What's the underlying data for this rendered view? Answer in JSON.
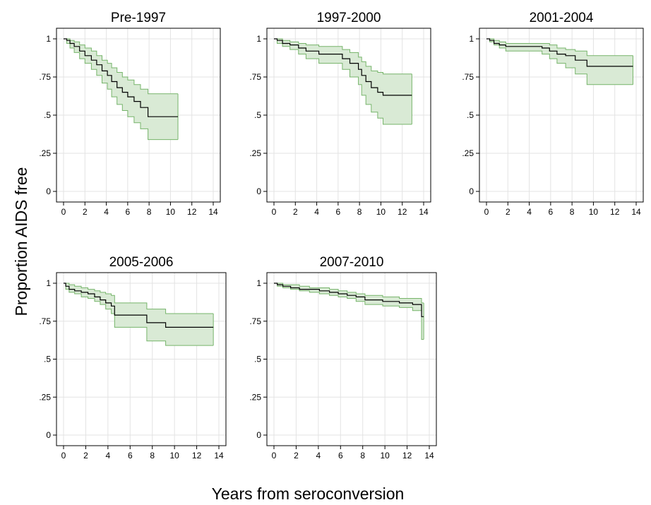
{
  "figure": {
    "ylabel": "Proportion AIDS free",
    "xlabel": "Years from seroconversion"
  },
  "colors": {
    "band_fill": "#d9ead5",
    "band_edge": "#76b46a",
    "line": "#000000",
    "grid": "#e3e3e3",
    "frame": "#000000"
  },
  "chart_data": [
    {
      "type": "line",
      "title": "Pre-1997",
      "xlim": [
        0,
        14
      ],
      "ylim": [
        0,
        1
      ],
      "xticks": [
        0,
        2,
        4,
        6,
        8,
        10,
        12,
        14
      ],
      "yticks": [
        0,
        0.25,
        0.5,
        0.75,
        1
      ],
      "ytick_labels": [
        "0",
        ".25",
        ".5",
        ".75",
        "1"
      ],
      "grid": true,
      "series": [
        {
          "x": [
            0,
            0.3,
            0.6,
            1.0,
            1.5,
            2.0,
            2.6,
            3.1,
            3.6,
            4.1,
            4.5,
            5.0,
            5.5,
            6.0,
            6.6,
            7.2,
            7.9,
            10.7
          ],
          "y": [
            1.0,
            0.99,
            0.97,
            0.95,
            0.92,
            0.89,
            0.86,
            0.83,
            0.79,
            0.76,
            0.72,
            0.68,
            0.65,
            0.62,
            0.59,
            0.55,
            0.49,
            0.49
          ],
          "lower": [
            1.0,
            0.97,
            0.94,
            0.91,
            0.87,
            0.84,
            0.8,
            0.76,
            0.71,
            0.67,
            0.62,
            0.57,
            0.53,
            0.49,
            0.45,
            0.41,
            0.34,
            0.34
          ],
          "upper": [
            1.0,
            1.0,
            0.99,
            0.98,
            0.96,
            0.94,
            0.92,
            0.89,
            0.86,
            0.84,
            0.81,
            0.78,
            0.75,
            0.73,
            0.7,
            0.67,
            0.64,
            0.64
          ]
        }
      ]
    },
    {
      "type": "line",
      "title": "1997-2000",
      "xlim": [
        0,
        14
      ],
      "ylim": [
        0,
        1
      ],
      "xticks": [
        0,
        2,
        4,
        6,
        8,
        10,
        12,
        14
      ],
      "yticks": [
        0,
        0.25,
        0.5,
        0.75,
        1
      ],
      "ytick_labels": [
        "0",
        ".25",
        ".5",
        ".75",
        "1"
      ],
      "grid": true,
      "series": [
        {
          "x": [
            0,
            0.3,
            0.8,
            1.5,
            2.3,
            3.0,
            4.2,
            6.4,
            7.1,
            7.9,
            8.2,
            8.6,
            9.1,
            9.7,
            10.2,
            12.9
          ],
          "y": [
            1.0,
            0.99,
            0.97,
            0.96,
            0.94,
            0.92,
            0.9,
            0.87,
            0.84,
            0.8,
            0.76,
            0.72,
            0.68,
            0.65,
            0.63,
            0.63
          ],
          "lower": [
            1.0,
            0.97,
            0.95,
            0.93,
            0.9,
            0.87,
            0.84,
            0.8,
            0.75,
            0.7,
            0.63,
            0.57,
            0.52,
            0.48,
            0.44,
            0.44
          ],
          "upper": [
            1.0,
            1.0,
            0.99,
            0.98,
            0.97,
            0.96,
            0.95,
            0.93,
            0.91,
            0.88,
            0.85,
            0.82,
            0.79,
            0.78,
            0.77,
            0.77
          ]
        }
      ]
    },
    {
      "type": "line",
      "title": "2001-2004",
      "xlim": [
        0,
        14
      ],
      "ylim": [
        0,
        1
      ],
      "xticks": [
        0,
        2,
        4,
        6,
        8,
        10,
        12,
        14
      ],
      "yticks": [
        0,
        0.25,
        0.5,
        0.75,
        1
      ],
      "ytick_labels": [
        "0",
        ".25",
        ".5",
        ".75",
        "1"
      ],
      "grid": true,
      "series": [
        {
          "x": [
            0,
            0.3,
            0.7,
            1.2,
            1.8,
            5.2,
            5.9,
            6.6,
            7.4,
            8.3,
            9.4,
            13.7
          ],
          "y": [
            1.0,
            0.99,
            0.97,
            0.96,
            0.95,
            0.94,
            0.92,
            0.9,
            0.89,
            0.86,
            0.82,
            0.82
          ],
          "lower": [
            1.0,
            0.98,
            0.96,
            0.94,
            0.92,
            0.9,
            0.87,
            0.84,
            0.81,
            0.77,
            0.7,
            0.7
          ],
          "upper": [
            1.0,
            1.0,
            0.99,
            0.98,
            0.97,
            0.97,
            0.96,
            0.94,
            0.93,
            0.92,
            0.89,
            0.89
          ]
        }
      ]
    },
    {
      "type": "line",
      "title": "2005-2006",
      "xlim": [
        0,
        14
      ],
      "ylim": [
        0,
        1
      ],
      "xticks": [
        0,
        2,
        4,
        6,
        8,
        10,
        12,
        14
      ],
      "yticks": [
        0,
        0.25,
        0.5,
        0.75,
        1
      ],
      "ytick_labels": [
        "0",
        ".25",
        ".5",
        ".75",
        "1"
      ],
      "grid": true,
      "series": [
        {
          "x": [
            0,
            0.2,
            0.5,
            1.0,
            1.6,
            2.2,
            2.8,
            3.3,
            3.8,
            4.3,
            4.6,
            7.5,
            9.2,
            13.5
          ],
          "y": [
            1.0,
            0.98,
            0.96,
            0.95,
            0.94,
            0.93,
            0.91,
            0.89,
            0.87,
            0.85,
            0.79,
            0.74,
            0.71,
            0.71
          ],
          "lower": [
            1.0,
            0.96,
            0.94,
            0.93,
            0.91,
            0.9,
            0.88,
            0.86,
            0.83,
            0.8,
            0.71,
            0.62,
            0.59,
            0.59
          ],
          "upper": [
            1.0,
            1.0,
            0.99,
            0.98,
            0.97,
            0.96,
            0.95,
            0.94,
            0.93,
            0.92,
            0.87,
            0.83,
            0.8,
            0.8
          ]
        }
      ]
    },
    {
      "type": "line",
      "title": "2007-2010",
      "xlim": [
        0,
        14
      ],
      "ylim": [
        0,
        1
      ],
      "xticks": [
        0,
        2,
        4,
        6,
        8,
        10,
        12,
        14
      ],
      "yticks": [
        0,
        0.25,
        0.5,
        0.75,
        1
      ],
      "ytick_labels": [
        "0",
        ".25",
        ".5",
        ".75",
        "1"
      ],
      "grid": true,
      "series": [
        {
          "x": [
            0,
            0.3,
            0.8,
            1.5,
            2.3,
            3.2,
            4.1,
            5.0,
            5.8,
            6.6,
            7.4,
            8.2,
            9.8,
            11.3,
            12.5,
            13.3,
            13.5
          ],
          "y": [
            1.0,
            0.99,
            0.98,
            0.97,
            0.96,
            0.96,
            0.95,
            0.94,
            0.93,
            0.92,
            0.91,
            0.89,
            0.88,
            0.87,
            0.86,
            0.78,
            0.78
          ],
          "lower": [
            1.0,
            0.98,
            0.97,
            0.96,
            0.95,
            0.94,
            0.93,
            0.92,
            0.91,
            0.9,
            0.88,
            0.86,
            0.85,
            0.84,
            0.82,
            0.63,
            0.63
          ],
          "upper": [
            1.0,
            1.0,
            0.99,
            0.99,
            0.98,
            0.97,
            0.97,
            0.96,
            0.95,
            0.94,
            0.93,
            0.92,
            0.91,
            0.9,
            0.9,
            0.87,
            0.87
          ]
        }
      ]
    }
  ]
}
